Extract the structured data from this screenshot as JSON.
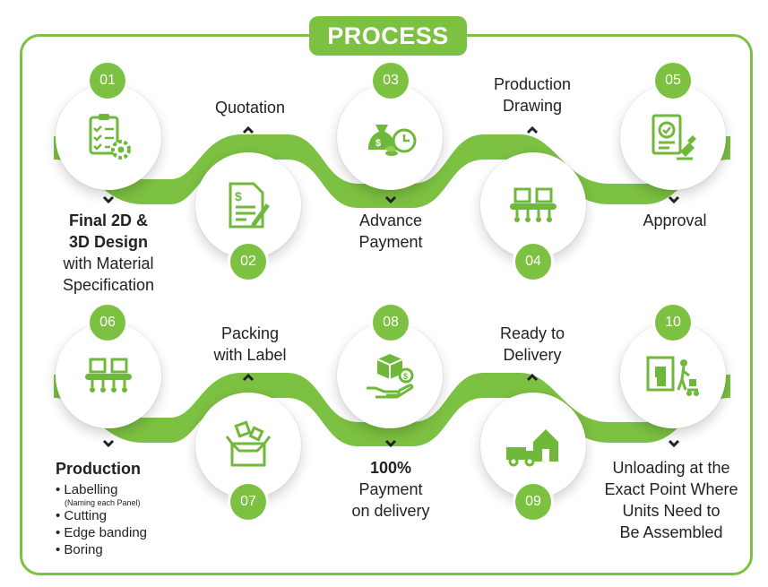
{
  "title": "PROCESS",
  "colors": {
    "accent": "#7cc142",
    "text": "#222222",
    "icon": "#6fb83a"
  },
  "steps": [
    {
      "number": "01",
      "icon": "checklist-gear-icon",
      "label": [
        "Final 2D &",
        "3D Design"
      ],
      "label_extra": [
        "with Material",
        "Specification"
      ]
    },
    {
      "number": "02",
      "icon": "document-sign-icon",
      "label": [
        "Quotation"
      ]
    },
    {
      "number": "03",
      "icon": "money-clock-icon",
      "label": [
        "Advance",
        "Payment"
      ]
    },
    {
      "number": "04",
      "icon": "conveyor-boxes-icon",
      "label": [
        "Production",
        "Drawing"
      ]
    },
    {
      "number": "05",
      "icon": "approval-stamp-icon",
      "label": [
        "Approval"
      ]
    },
    {
      "number": "06",
      "icon": "conveyor-boxes-icon",
      "label": [
        "Production"
      ]
    },
    {
      "number": "07",
      "icon": "open-box-icon",
      "label": [
        "Packing",
        "with Label"
      ]
    },
    {
      "number": "08",
      "icon": "hand-box-coin-icon",
      "label": [
        "100%",
        "Payment",
        "on delivery"
      ]
    },
    {
      "number": "09",
      "icon": "truck-house-icon",
      "label": [
        "Ready to",
        "Delivery"
      ]
    },
    {
      "number": "10",
      "icon": "unloading-worker-icon",
      "label": [
        "Unloading at the",
        "Exact Point Where",
        "Units Need to",
        "Be Assembled"
      ]
    }
  ],
  "production_tasks": [
    {
      "text": "• Labelling",
      "sub": "(Naming each Panel)"
    },
    {
      "text": "• Cutting"
    },
    {
      "text": "• Edge banding"
    },
    {
      "text": "• Boring"
    }
  ]
}
